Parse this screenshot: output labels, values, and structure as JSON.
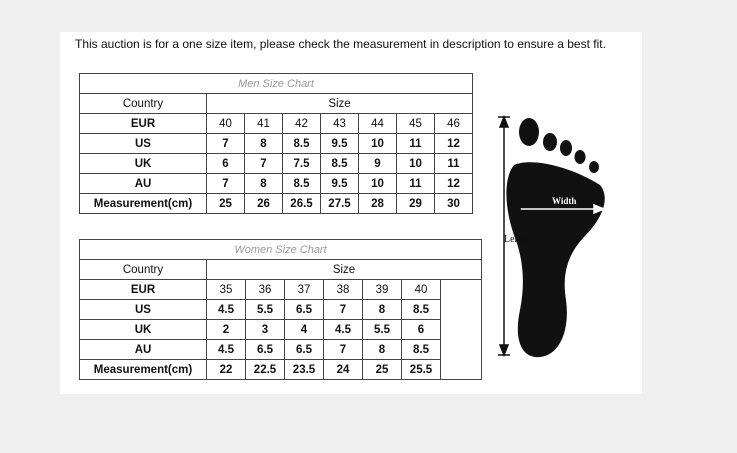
{
  "notice": "This auction is for a one size item, please check the measurement in description to ensure a best fit.",
  "men": {
    "title": "Men Size Chart",
    "country_header": "Country",
    "size_header": "Size",
    "rows": [
      {
        "label": "EUR",
        "values": [
          "40",
          "41",
          "42",
          "43",
          "44",
          "45",
          "46"
        ]
      },
      {
        "label": "US",
        "values": [
          "7",
          "8",
          "8.5",
          "9.5",
          "10",
          "11",
          "12"
        ]
      },
      {
        "label": "UK",
        "values": [
          "6",
          "7",
          "7.5",
          "8.5",
          "9",
          "10",
          "11"
        ]
      },
      {
        "label": "AU",
        "values": [
          "7",
          "8",
          "8.5",
          "9.5",
          "10",
          "11",
          "12"
        ]
      },
      {
        "label": "Measurement(cm)",
        "values": [
          "25",
          "26",
          "26.5",
          "27.5",
          "28",
          "29",
          "30"
        ]
      }
    ]
  },
  "women": {
    "title": "Women Size Chart",
    "country_header": "Country",
    "size_header": "Size",
    "rows": [
      {
        "label": "EUR",
        "values": [
          "35",
          "36",
          "37",
          "38",
          "39",
          "40"
        ]
      },
      {
        "label": "US",
        "values": [
          "4.5",
          "5.5",
          "6.5",
          "7",
          "8",
          "8.5"
        ]
      },
      {
        "label": "UK",
        "values": [
          "2",
          "3",
          "4",
          "4.5",
          "5.5",
          "6"
        ]
      },
      {
        "label": "AU",
        "values": [
          "4.5",
          "6.5",
          "6.5",
          "7",
          "8",
          "8.5"
        ]
      },
      {
        "label": "Measurement(cm)",
        "values": [
          "22",
          "22.5",
          "23.5",
          "24",
          "25",
          "25.5"
        ]
      }
    ]
  },
  "diagram": {
    "width_label": "Width",
    "length_label": "Length"
  }
}
